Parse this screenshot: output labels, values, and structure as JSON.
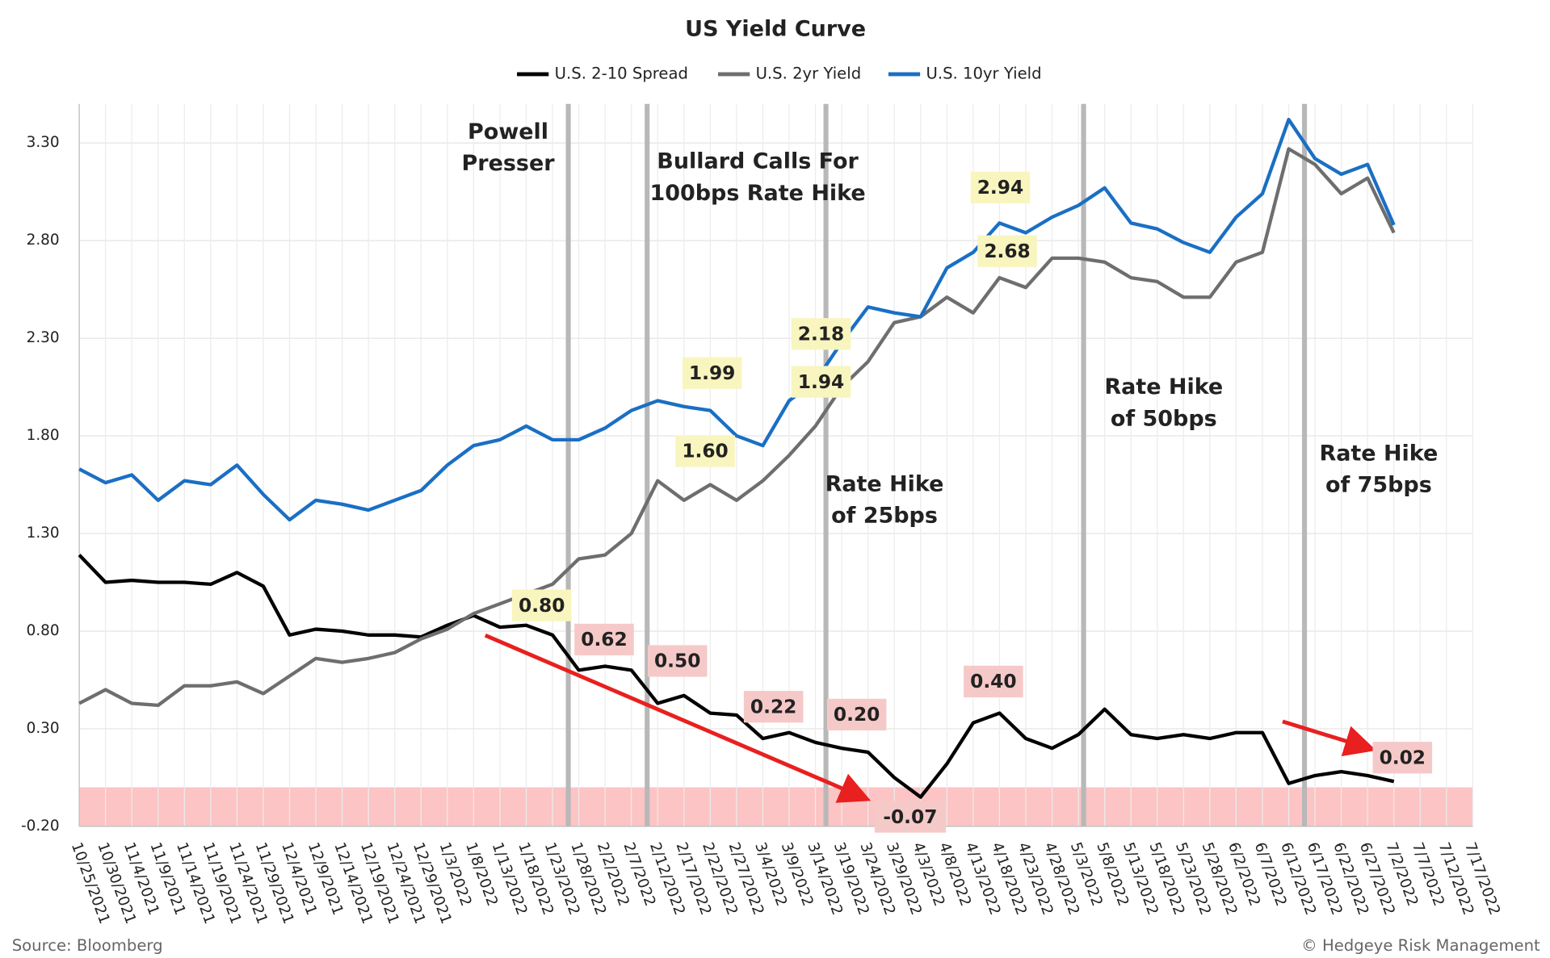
{
  "chart_data": {
    "type": "line",
    "title": "US Yield Curve",
    "source": "Source: Bloomberg",
    "copyright": "© Hedgeye Risk Management",
    "x": [
      "10/25/2021",
      "10/30/2021",
      "11/4/2021",
      "11/9/2021",
      "11/14/2021",
      "11/19/2021",
      "11/24/2021",
      "11/29/2021",
      "12/4/2021",
      "12/9/2021",
      "12/14/2021",
      "12/19/2021",
      "12/24/2021",
      "12/29/2021",
      "1/3/2022",
      "1/8/2022",
      "1/13/2022",
      "1/18/2022",
      "1/23/2022",
      "1/28/2022",
      "2/2/2022",
      "2/7/2022",
      "2/12/2022",
      "2/17/2022",
      "2/22/2022",
      "2/27/2022",
      "3/4/2022",
      "3/9/2022",
      "3/14/2022",
      "3/19/2022",
      "3/24/2022",
      "3/29/2022",
      "4/3/2022",
      "4/8/2022",
      "4/13/2022",
      "4/18/2022",
      "4/23/2022",
      "4/28/2022",
      "5/3/2022",
      "5/8/2022",
      "5/13/2022",
      "5/18/2022",
      "5/23/2022",
      "5/28/2022",
      "6/2/2022",
      "6/7/2022",
      "6/12/2022",
      "6/17/2022",
      "6/22/2022",
      "6/27/2022",
      "7/2/2022",
      "7/7/2022",
      "7/12/2022",
      "7/17/2022"
    ],
    "xlim": [
      "10/25/2021",
      "7/17/2022"
    ],
    "xticks": [
      "10/25/2021",
      "10/30/2021",
      "11/4/2021",
      "11/9/2021",
      "11/14/2021",
      "11/19/2021",
      "11/24/2021",
      "11/29/2021",
      "12/4/2021",
      "12/9/2021",
      "12/14/2021",
      "12/19/2021",
      "12/24/2021",
      "12/29/2021",
      "1/3/2022",
      "1/8/2022",
      "1/13/2022",
      "1/18/2022",
      "1/23/2022",
      "1/28/2022",
      "2/2/2022",
      "2/7/2022",
      "2/12/2022",
      "2/17/2022",
      "2/22/2022",
      "2/27/2022",
      "3/4/2022",
      "3/9/2022",
      "3/14/2022",
      "3/19/2022",
      "3/24/2022",
      "3/29/2022",
      "4/3/2022",
      "4/8/2022",
      "4/13/2022",
      "4/18/2022",
      "4/23/2022",
      "4/28/2022",
      "5/3/2022",
      "5/8/2022",
      "5/13/2022",
      "5/18/2022",
      "5/23/2022",
      "5/28/2022",
      "6/2/2022",
      "6/7/2022",
      "6/12/2022",
      "6/17/2022",
      "6/22/2022",
      "6/27/2022",
      "7/2/2022",
      "7/7/2022",
      "7/12/2022",
      "7/17/2022"
    ],
    "ylim": [
      -0.2,
      3.5
    ],
    "yticks": [
      {
        "value": 3.3,
        "label": "3.30"
      },
      {
        "value": 2.8,
        "label": "2.80"
      },
      {
        "value": 2.3,
        "label": "2.30"
      },
      {
        "value": 1.8,
        "label": "1.80"
      },
      {
        "value": 1.3,
        "label": "1.30"
      },
      {
        "value": 0.8,
        "label": "0.80"
      },
      {
        "value": 0.3,
        "label": "0.30"
      },
      {
        "value": -0.2,
        "label": "-0.20"
      }
    ],
    "grid": true,
    "legend": "top",
    "series": [
      {
        "name": "U.S. 2-10 Spread",
        "color": "#000000",
        "values": [
          1.19,
          1.05,
          1.06,
          1.05,
          1.05,
          1.04,
          1.1,
          1.03,
          0.78,
          0.81,
          0.8,
          0.78,
          0.78,
          0.77,
          0.83,
          0.88,
          0.82,
          0.83,
          0.78,
          0.6,
          0.62,
          0.6,
          0.43,
          0.47,
          0.38,
          0.37,
          0.25,
          0.28,
          0.23,
          0.2,
          0.18,
          0.05,
          -0.05,
          0.12,
          0.33,
          0.38,
          0.25,
          0.2,
          0.27,
          0.4,
          0.27,
          0.25,
          0.27,
          0.25,
          0.28,
          0.28,
          0.02,
          0.06,
          0.08,
          0.06,
          0.03,
          null,
          null,
          null
        ]
      },
      {
        "name": "U.S. 2yr Yield",
        "color": "#6e6e6e",
        "values": [
          0.43,
          0.5,
          0.43,
          0.42,
          0.52,
          0.52,
          0.54,
          0.48,
          0.57,
          0.66,
          0.64,
          0.66,
          0.69,
          0.76,
          0.81,
          0.89,
          0.94,
          0.99,
          1.04,
          1.17,
          1.19,
          1.3,
          1.57,
          1.47,
          1.55,
          1.47,
          1.57,
          1.7,
          1.85,
          2.05,
          2.18,
          2.38,
          2.41,
          2.51,
          2.43,
          2.61,
          2.56,
          2.71,
          2.71,
          2.69,
          2.61,
          2.59,
          2.51,
          2.51,
          2.69,
          2.74,
          3.27,
          3.19,
          3.04,
          3.12,
          2.84,
          null,
          null,
          null
        ]
      },
      {
        "name": "U.S. 10yr Yield",
        "color": "#1a6fc4",
        "values": [
          1.63,
          1.56,
          1.6,
          1.47,
          1.57,
          1.55,
          1.65,
          1.5,
          1.37,
          1.47,
          1.45,
          1.42,
          1.47,
          1.52,
          1.65,
          1.75,
          1.78,
          1.85,
          1.78,
          1.78,
          1.84,
          1.93,
          1.98,
          1.95,
          1.93,
          1.8,
          1.75,
          1.98,
          2.08,
          2.28,
          2.46,
          2.43,
          2.41,
          2.66,
          2.74,
          2.89,
          2.84,
          2.92,
          2.98,
          3.07,
          2.89,
          2.86,
          2.79,
          2.74,
          2.92,
          3.04,
          3.42,
          3.22,
          3.14,
          3.19,
          2.88,
          null,
          null,
          null
        ]
      }
    ],
    "events": [
      {
        "x": "1/26/2022",
        "lines": [
          "Powell",
          "Presser"
        ]
      },
      {
        "x": "2/10/2022",
        "lines": [
          "Bullard Calls For",
          "100bps Rate Hike"
        ]
      },
      {
        "x": "3/16/2022",
        "lines": [
          "Rate Hike",
          "of 25bps"
        ]
      },
      {
        "x": "5/4/2022",
        "lines": [
          "Rate Hike",
          "of 50bps"
        ]
      },
      {
        "x": "6/15/2022",
        "lines": [
          "Rate Hike",
          "of 75bps"
        ]
      }
    ],
    "callouts": [
      {
        "value": 0.8,
        "label": "0.80",
        "color": "#f8f5bf"
      },
      {
        "value": 0.62,
        "label": "0.62",
        "color": "#f6c9c9"
      },
      {
        "value": 0.5,
        "label": "0.50",
        "color": "#f6c9c9"
      },
      {
        "value": 0.22,
        "label": "0.22",
        "color": "#f6c9c9"
      },
      {
        "value": 0.2,
        "label": "0.20",
        "color": "#f6c9c9"
      },
      {
        "value": -0.07,
        "label": "-0.07",
        "color": "#f6c9c9"
      },
      {
        "value": 0.4,
        "label": "0.40",
        "color": "#f6c9c9"
      },
      {
        "value": 0.02,
        "label": "0.02",
        "color": "#f6c9c9"
      },
      {
        "value": 1.6,
        "label": "1.60",
        "color": "#f8f5bf"
      },
      {
        "value": 1.94,
        "label": "1.94",
        "color": "#f8f5bf"
      },
      {
        "value": 2.68,
        "label": "2.68",
        "color": "#f8f5bf"
      },
      {
        "value": 1.99,
        "label": "1.99",
        "color": "#f8f5bf"
      },
      {
        "value": 2.18,
        "label": "2.18",
        "color": "#f8f5bf"
      },
      {
        "value": 2.94,
        "label": "2.94",
        "color": "#f8f5bf"
      }
    ]
  }
}
